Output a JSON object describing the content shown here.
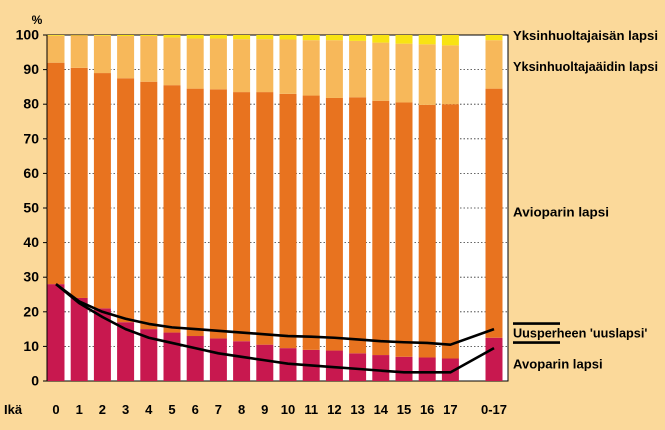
{
  "chart_data": {
    "type": "bar",
    "stacked": true,
    "ylabel": "%",
    "ylim": [
      0,
      100
    ],
    "yticks": [
      0,
      10,
      20,
      30,
      40,
      50,
      60,
      70,
      80,
      90,
      100
    ],
    "x_axis_label": "Ikä",
    "categories": [
      "0",
      "1",
      "2",
      "3",
      "4",
      "5",
      "6",
      "7",
      "8",
      "9",
      "10",
      "11",
      "12",
      "13",
      "14",
      "15",
      "16",
      "17",
      "0-17"
    ],
    "series": [
      {
        "name": "Avoparin lapsi",
        "color": "#C8184F",
        "values": [
          28,
          24,
          21,
          17,
          15,
          14,
          13,
          12.3,
          11.5,
          10.5,
          9.5,
          9,
          8.8,
          8,
          7.5,
          7,
          6.8,
          6.5,
          12.5
        ]
      },
      {
        "name": "Avioparin lapsi",
        "color": "#E8731F",
        "values": [
          64,
          66.5,
          68,
          70.5,
          71.5,
          71.5,
          71.5,
          72,
          72,
          73,
          73.5,
          73.5,
          73,
          74,
          73.5,
          73.5,
          73,
          73.5,
          72
        ]
      },
      {
        "name": "Yksinhuoltajaäidin lapsi",
        "color": "#F7B85A",
        "values": [
          7.8,
          9.4,
          10.8,
          12.2,
          13.2,
          13.8,
          14.5,
          14.7,
          15.3,
          15.3,
          15.7,
          16,
          16.7,
          16.3,
          16.8,
          17,
          17.5,
          17,
          14
        ]
      },
      {
        "name": "Yksinhuoltajaisän lapsi",
        "color": "#F8E313",
        "values": [
          0.2,
          0.1,
          0.2,
          0.3,
          0.3,
          0.7,
          1,
          1,
          1.2,
          1.2,
          1.3,
          1.5,
          1.5,
          1.7,
          2.2,
          2.5,
          2.7,
          3,
          1.5
        ]
      }
    ],
    "lines": [
      {
        "name": "Uusperheen 'uuslapsi'",
        "values": [
          28,
          23,
          20,
          18,
          16.5,
          15.5,
          15,
          14.5,
          14,
          13.5,
          13,
          12.8,
          12.5,
          12,
          11.5,
          11.2,
          11,
          10.5,
          15
        ]
      },
      {
        "name": "Avoparin lapsi",
        "values": [
          28,
          22.5,
          18.5,
          15,
          12.5,
          11,
          9.5,
          8,
          7,
          6,
          5,
          4.5,
          4,
          3.5,
          3,
          2.5,
          2.5,
          2.5,
          9.5
        ]
      }
    ],
    "labels": [
      {
        "text": "Yksinhuoltajaisän lapsi",
        "at_value": 100
      },
      {
        "text": "Yksinhuoltajaäidin lapsi",
        "at_value": 91
      },
      {
        "text": "Avioparin lapsi",
        "at_value": 49
      },
      {
        "text": "Uusperheen 'uuslapsi'",
        "at_value": 14,
        "legend_line": true
      },
      {
        "text": "Avoparin lapsi",
        "at_value": 5
      }
    ],
    "grid": true
  }
}
